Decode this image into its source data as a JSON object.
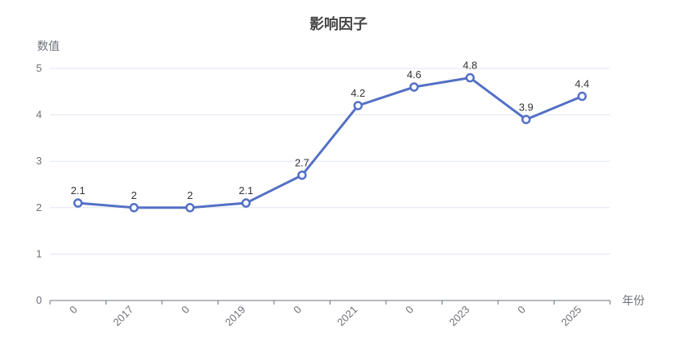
{
  "chart_data": {
    "type": "line",
    "title": "影响因子",
    "xlabel": "年份",
    "ylabel": "数值",
    "categories": [
      "0",
      "2017",
      "0",
      "2019",
      "0",
      "2021",
      "0",
      "2023",
      "0",
      "2025"
    ],
    "values": [
      2.1,
      2,
      2,
      2.1,
      2.7,
      4.2,
      4.6,
      4.8,
      3.9,
      4.4
    ],
    "point_labels": [
      "2.1",
      "2",
      "2",
      "2.1",
      "2.7",
      "4.2",
      "4.6",
      "4.8",
      "3.9",
      "4.4"
    ],
    "ylim": [
      0,
      5
    ],
    "y_ticks": [
      0,
      1,
      2,
      3,
      4,
      5
    ],
    "grid": true,
    "x_label_rotation": 45,
    "legend": "none",
    "colors": {
      "line": "#5470c6",
      "marker_fill": "#ffffff",
      "grid_line": "#e0e6f1",
      "axis_line": "#6e7079",
      "tick_label": "#6e7079",
      "axis_name": "#6e7079",
      "value_label": "#333333",
      "title": "#464646"
    }
  }
}
